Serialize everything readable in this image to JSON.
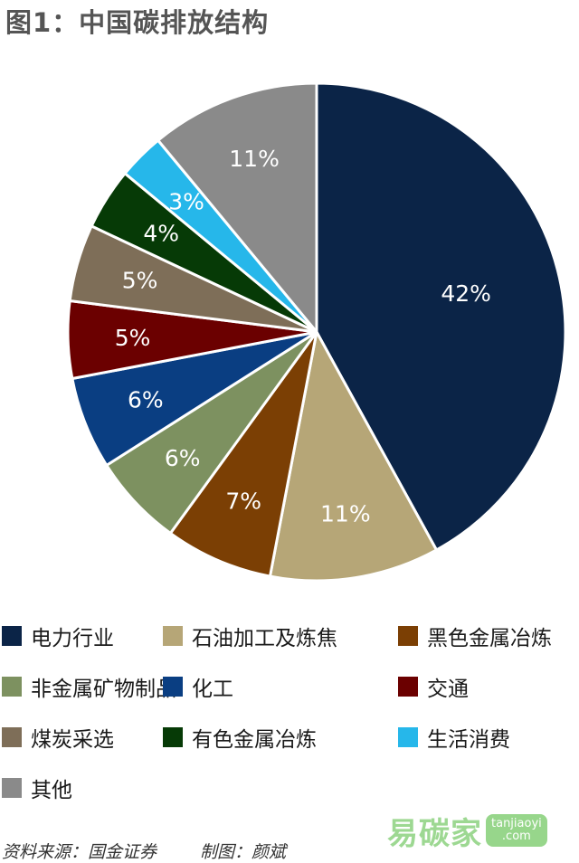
{
  "title": "图1：中国碳排放结构",
  "chart_data": {
    "type": "pie",
    "title": "",
    "start_angle_deg": 0,
    "direction": "clockwise",
    "slices": [
      {
        "label": "电力行业",
        "value": 42,
        "display": "42%",
        "color": "#0b2447",
        "text_color": "#ffffff"
      },
      {
        "label": "石油加工及炼焦",
        "value": 11,
        "display": "11%",
        "color": "#b6a677",
        "text_color": "#ffffff"
      },
      {
        "label": "黑色金属冶炼",
        "value": 7,
        "display": "7%",
        "color": "#7b3f04",
        "text_color": "#ffffff"
      },
      {
        "label": "非金属矿物制品",
        "value": 6,
        "display": "6%",
        "color": "#7d9160",
        "text_color": "#ffffff"
      },
      {
        "label": "化工",
        "value": 6,
        "display": "6%",
        "color": "#0a3e82",
        "text_color": "#ffffff"
      },
      {
        "label": "交通",
        "value": 5,
        "display": "5%",
        "color": "#6b0000",
        "text_color": "#ffffff"
      },
      {
        "label": "煤炭采选",
        "value": 5,
        "display": "5%",
        "color": "#7e6e58",
        "text_color": "#ffffff"
      },
      {
        "label": "有色金属冶炼",
        "value": 4,
        "display": "4%",
        "color": "#063a06",
        "text_color": "#ffffff"
      },
      {
        "label": "生活消费",
        "value": 3,
        "display": "3%",
        "color": "#26b7ea",
        "text_color": "#ffffff"
      },
      {
        "label": "其他",
        "value": 11,
        "display": "11%",
        "color": "#8a8a8a",
        "text_color": "#ffffff"
      }
    ],
    "legend_position": "bottom"
  },
  "legend": {
    "items": [
      {
        "label": "电力行业",
        "color": "#0b2447"
      },
      {
        "label": "石油加工及炼焦",
        "color": "#b6a677"
      },
      {
        "label": "黑色金属冶炼",
        "color": "#7b3f04"
      },
      {
        "label": "非金属矿物制品",
        "color": "#7d9160"
      },
      {
        "label": "化工",
        "color": "#0a3e82"
      },
      {
        "label": "交通",
        "color": "#6b0000"
      },
      {
        "label": "煤炭采选",
        "color": "#7e6e58"
      },
      {
        "label": "有色金属冶炼",
        "color": "#063a06"
      },
      {
        "label": "生活消费",
        "color": "#26b7ea"
      },
      {
        "label": "其他",
        "color": "#8a8a8a"
      }
    ]
  },
  "footer": {
    "source": "资料来源：国金证券",
    "author": "制图：颜斌"
  },
  "watermark": {
    "text": "易碳家",
    "badge_line1": "tanjiaoyi",
    "badge_line2": ".com"
  }
}
